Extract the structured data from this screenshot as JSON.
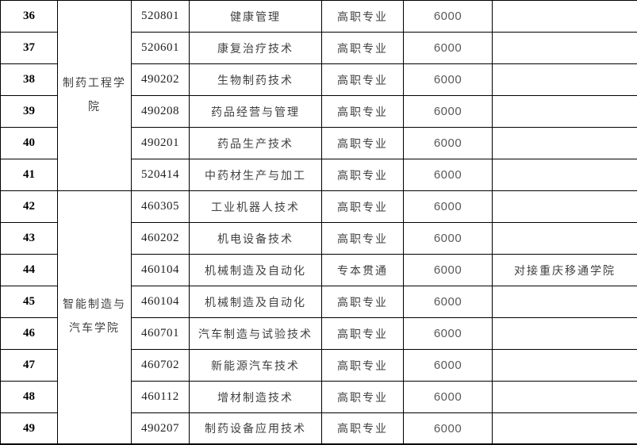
{
  "colors": {
    "border": "#000000",
    "row_number_text": "#000000",
    "code_text": "#1f1f1f",
    "cjk_text": "#404040",
    "fee_text": "#595959",
    "background": "#ffffff"
  },
  "table": {
    "college_spans": [
      {
        "label": "制药工程学院",
        "from_index": 0,
        "rowspan": 6
      },
      {
        "label": "智能制造与汽车学院",
        "from_index": 6,
        "rowspan": 8
      }
    ],
    "rows": [
      {
        "num": "36",
        "code": "520801",
        "major": "健康管理",
        "level": "高职专业",
        "fee": "6000",
        "note": ""
      },
      {
        "num": "37",
        "code": "520601",
        "major": "康复治疗技术",
        "level": "高职专业",
        "fee": "6000",
        "note": ""
      },
      {
        "num": "38",
        "code": "490202",
        "major": "生物制药技术",
        "level": "高职专业",
        "fee": "6000",
        "note": ""
      },
      {
        "num": "39",
        "code": "490208",
        "major": "药品经营与管理",
        "level": "高职专业",
        "fee": "6000",
        "note": ""
      },
      {
        "num": "40",
        "code": "490201",
        "major": "药品生产技术",
        "level": "高职专业",
        "fee": "6000",
        "note": ""
      },
      {
        "num": "41",
        "code": "520414",
        "major": "中药材生产与加工",
        "level": "高职专业",
        "fee": "6000",
        "note": ""
      },
      {
        "num": "42",
        "code": "460305",
        "major": "工业机器人技术",
        "level": "高职专业",
        "fee": "6000",
        "note": ""
      },
      {
        "num": "43",
        "code": "460202",
        "major": "机电设备技术",
        "level": "高职专业",
        "fee": "6000",
        "note": ""
      },
      {
        "num": "44",
        "code": "460104",
        "major": "机械制造及自动化",
        "level": "专本贯通",
        "fee": "6000",
        "note": "对接重庆移通学院"
      },
      {
        "num": "45",
        "code": "460104",
        "major": "机械制造及自动化",
        "level": "高职专业",
        "fee": "6000",
        "note": ""
      },
      {
        "num": "46",
        "code": "460701",
        "major": "汽车制造与试验技术",
        "level": "高职专业",
        "fee": "6000",
        "note": ""
      },
      {
        "num": "47",
        "code": "460702",
        "major": "新能源汽车技术",
        "level": "高职专业",
        "fee": "6000",
        "note": ""
      },
      {
        "num": "48",
        "code": "460112",
        "major": "增材制造技术",
        "level": "高职专业",
        "fee": "6000",
        "note": ""
      },
      {
        "num": "49",
        "code": "490207",
        "major": "制药设备应用技术",
        "level": "高职专业",
        "fee": "6000",
        "note": ""
      }
    ]
  }
}
